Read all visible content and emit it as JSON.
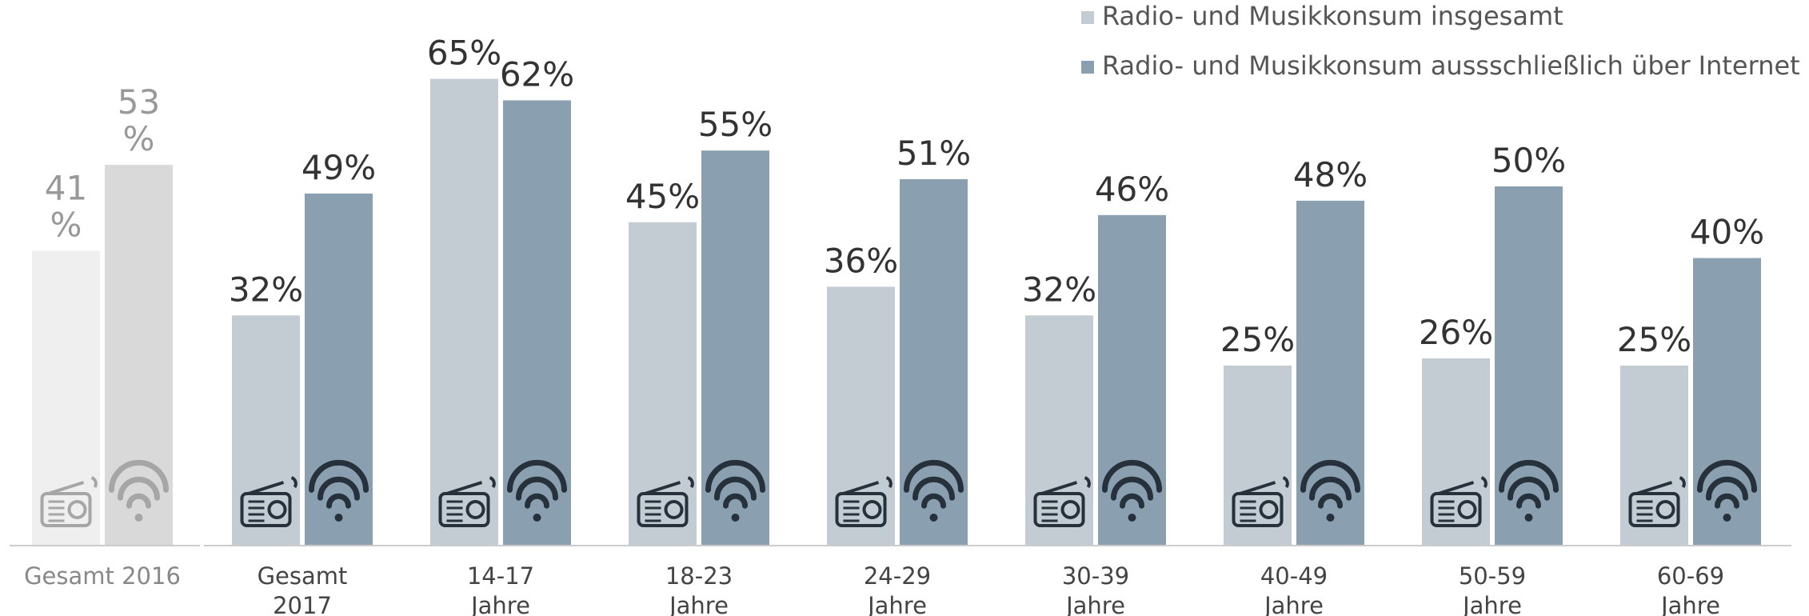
{
  "chart_data": {
    "type": "bar",
    "categories": [
      "Gesamt 2016",
      "Gesamt\n2017",
      "14-17\nJahre",
      "18-23\nJahre",
      "24-29\nJahre",
      "30-39\nJahre",
      "40-49\nJahre",
      "50-59\nJahre",
      "60-69\nJahre"
    ],
    "series": [
      {
        "name": "Radio- und Musikkonsum insgesamt",
        "color": "#c3ccd3",
        "values": [
          41,
          32,
          65,
          45,
          36,
          32,
          25,
          26,
          25
        ],
        "value_labels": [
          "41\n%",
          "32%",
          "65%",
          "45%",
          "36%",
          "32%",
          "25%",
          "26%",
          "25%"
        ]
      },
      {
        "name": "Radio- und Musikkonsum aussschließlich über Internet",
        "color": "#8aa0b0",
        "values": [
          53,
          49,
          62,
          55,
          51,
          46,
          48,
          50,
          40
        ],
        "value_labels": [
          "53\n%",
          "49%",
          "62%",
          "55%",
          "51%",
          "46%",
          "48%",
          "50%",
          "40%"
        ]
      }
    ],
    "previous_colors": [
      "#efefef",
      "#d9d9d9"
    ],
    "ylim": [
      0,
      76
    ]
  }
}
